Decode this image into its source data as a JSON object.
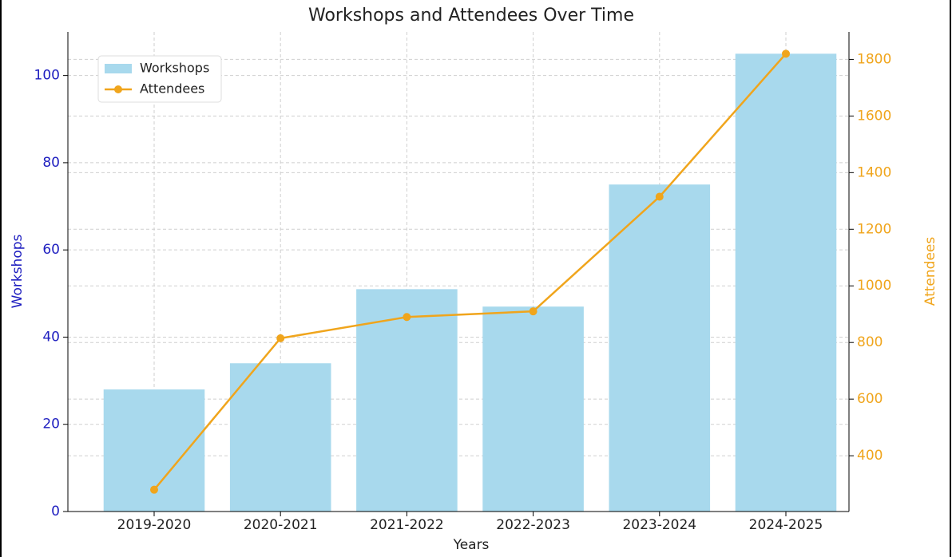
{
  "chart_data": {
    "type": "bar_line",
    "title": "Workshops and Attendees Over Time",
    "xlabel": "Years",
    "ylabel": "Workshops",
    "y2label": "Attendees",
    "categories": [
      "2019-2020",
      "2020-2021",
      "2021-2022",
      "2022-2023",
      "2023-2024",
      "2024-2025"
    ],
    "series": [
      {
        "name": "Workshops",
        "type": "bar",
        "color": "#a8d9ed",
        "values": [
          28,
          34,
          51,
          47,
          75,
          105
        ]
      },
      {
        "name": "Attendees",
        "type": "line",
        "axis": "y2",
        "color": "#f0a51c",
        "values": [
          280,
          815,
          890,
          910,
          1315,
          1820
        ]
      }
    ],
    "ylim": [
      0,
      110
    ],
    "yticks": [
      0,
      20,
      40,
      60,
      80,
      100
    ],
    "ycolor": "#2020c0",
    "y2lim": [
      203,
      1897
    ],
    "y2ticks": [
      400,
      600,
      800,
      1000,
      1200,
      1400,
      1600,
      1800
    ],
    "grid": true,
    "legend": "upper left"
  }
}
